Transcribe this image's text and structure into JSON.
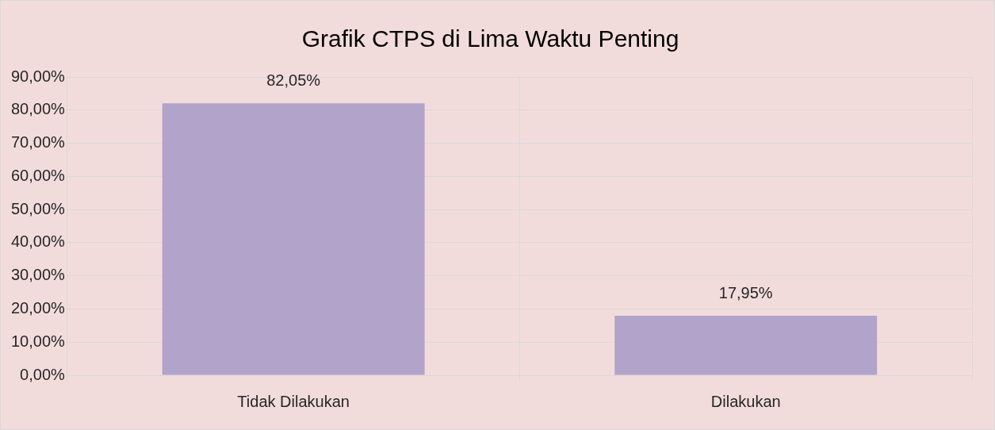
{
  "chart_data": {
    "type": "bar",
    "title": "Grafik CTPS di Lima Waktu Penting",
    "categories": [
      "Tidak Dilakukan",
      "Dilakukan"
    ],
    "values": [
      82.05,
      17.95
    ],
    "value_labels": [
      "82,05%",
      "17,95%"
    ],
    "color": "#b1a3c9",
    "ylim": [
      0,
      90
    ],
    "yticks": [
      {
        "value": 0,
        "label": "0,00%"
      },
      {
        "value": 10,
        "label": "10,00%"
      },
      {
        "value": 20,
        "label": "20,00%"
      },
      {
        "value": 30,
        "label": "30,00%"
      },
      {
        "value": 40,
        "label": "40,00%"
      },
      {
        "value": 50,
        "label": "50,00%"
      },
      {
        "value": 60,
        "label": "60,00%"
      },
      {
        "value": 70,
        "label": "70,00%"
      },
      {
        "value": 80,
        "label": "80,00%"
      },
      {
        "value": 90,
        "label": "90,00%"
      }
    ],
    "grid": true,
    "legend": false
  }
}
